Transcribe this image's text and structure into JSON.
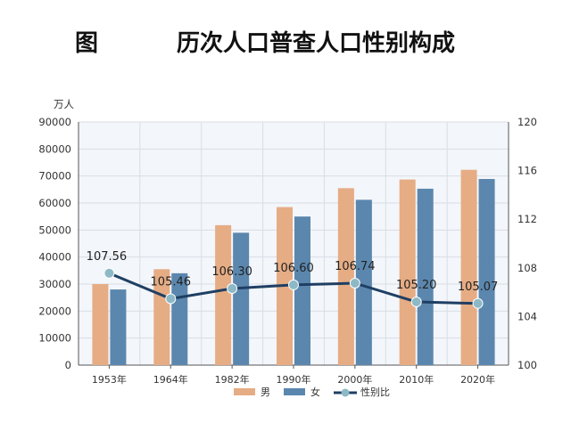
{
  "title": {
    "prefix": "图",
    "main": "历次人口普查人口性别构成"
  },
  "colors": {
    "male": "#E6AC84",
    "female": "#5B87AE",
    "ratio_line": "#1F3F63",
    "ratio_marker": "#8DB9C6",
    "plot_bg": "#F3F6FA",
    "grid": "#D9DEE5"
  },
  "chart_data": {
    "type": "bar",
    "categories": [
      "1953年",
      "1964年",
      "1982年",
      "1990年",
      "2000年",
      "2010年",
      "2020年"
    ],
    "series": [
      {
        "name": "男",
        "kind": "bar",
        "axis": "left",
        "values": [
          30000,
          35500,
          51800,
          58500,
          65500,
          68700,
          72300
        ]
      },
      {
        "name": "女",
        "kind": "bar",
        "axis": "left",
        "values": [
          28000,
          34000,
          49000,
          55000,
          61200,
          65300,
          68900
        ]
      },
      {
        "name": "性别比",
        "kind": "line",
        "axis": "right",
        "values": [
          107.56,
          105.46,
          106.3,
          106.6,
          106.74,
          105.2,
          105.07
        ],
        "labels": [
          "107.56",
          "105.46",
          "106.30",
          "106.60",
          "106.74",
          "105.20",
          "105.07"
        ]
      }
    ],
    "y_left": {
      "unit": "万人",
      "min": 0,
      "max": 90000,
      "ticks": [
        "0",
        "10000",
        "20000",
        "30000",
        "40000",
        "50000",
        "60000",
        "70000",
        "80000",
        "90000"
      ]
    },
    "y_right": {
      "min": 100,
      "max": 120,
      "ticks": [
        "100",
        "104",
        "108",
        "112",
        "116",
        "120"
      ]
    },
    "legend": {
      "position": "bottom",
      "items": [
        "男",
        "女",
        "性别比"
      ]
    },
    "grid": true
  }
}
